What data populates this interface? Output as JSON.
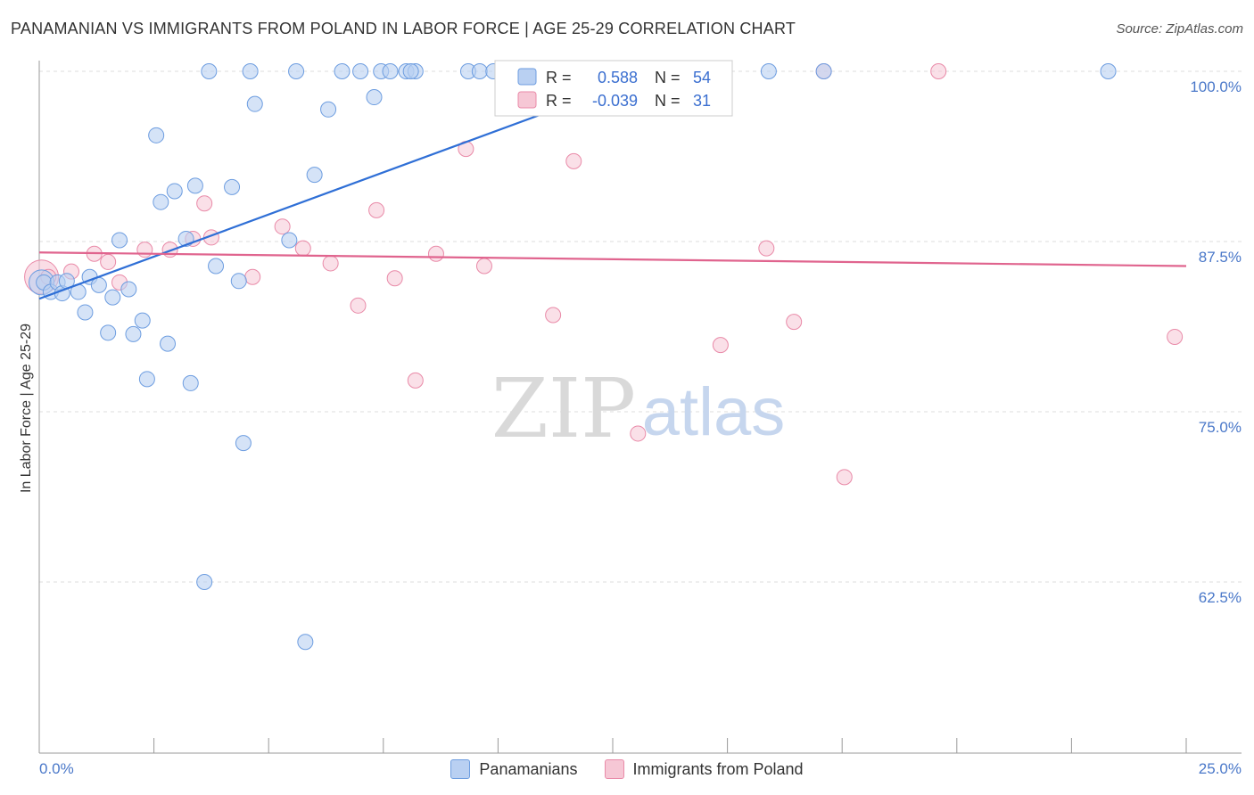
{
  "header": {
    "title": "PANAMANIAN VS IMMIGRANTS FROM POLAND IN LABOR FORCE | AGE 25-29 CORRELATION CHART",
    "source": "Source: ZipAtlas.com"
  },
  "watermark": {
    "zip": "ZIP",
    "atlas": "atlas"
  },
  "chart_data": {
    "type": "scatter",
    "xlabel": "",
    "ylabel": "In Labor Force | Age 25-29",
    "xlim": [
      0,
      25
    ],
    "ylim": [
      50,
      101
    ],
    "x_tick_labels": [
      "0.0%",
      "25.0%"
    ],
    "y_ticks": [
      62.5,
      75.0,
      87.5,
      100.0
    ],
    "y_tick_labels": [
      "62.5%",
      "75.0%",
      "87.5%",
      "100.0%"
    ],
    "colors": {
      "blue": "#6d9de0",
      "blue_fill": "#b9d0f2",
      "pink": "#e98aa8",
      "pink_fill": "#f6c7d5",
      "blue_line": "#2f6fd6",
      "pink_line": "#e0648e"
    },
    "legend": [
      {
        "name": "Panamanians",
        "r_label": "R =",
        "r": "0.588",
        "n_label": "N =",
        "n": "54"
      },
      {
        "name": "Immigrants from Poland",
        "r_label": "R =",
        "r": "-0.039",
        "n_label": "N =",
        "n": "31"
      }
    ],
    "series": [
      {
        "name": "Panamanians",
        "trend": {
          "x": [
            0.0,
            13.5
          ],
          "y": [
            83.3,
            100.0
          ]
        },
        "points": [
          [
            0.1,
            84.5
          ],
          [
            0.25,
            83.8
          ],
          [
            0.4,
            84.5
          ],
          [
            0.5,
            83.7
          ],
          [
            0.85,
            83.8
          ],
          [
            0.6,
            84.6
          ],
          [
            1.1,
            84.9
          ],
          [
            1.3,
            84.3
          ],
          [
            1.6,
            83.4
          ],
          [
            1.95,
            84.0
          ],
          [
            1.0,
            82.3
          ],
          [
            1.5,
            80.8
          ],
          [
            2.05,
            80.7
          ],
          [
            2.25,
            81.7
          ],
          [
            2.8,
            80.0
          ],
          [
            2.35,
            77.4
          ],
          [
            3.3,
            77.1
          ],
          [
            1.75,
            87.6
          ],
          [
            3.2,
            87.7
          ],
          [
            3.85,
            85.7
          ],
          [
            4.35,
            84.6
          ],
          [
            5.45,
            87.6
          ],
          [
            2.65,
            90.4
          ],
          [
            2.95,
            91.2
          ],
          [
            3.4,
            91.6
          ],
          [
            4.2,
            91.5
          ],
          [
            6.0,
            92.4
          ],
          [
            2.55,
            95.3
          ],
          [
            4.7,
            97.6
          ],
          [
            6.3,
            97.2
          ],
          [
            7.3,
            98.1
          ],
          [
            3.7,
            100.0
          ],
          [
            4.6,
            100.0
          ],
          [
            5.6,
            100.0
          ],
          [
            6.6,
            100.0
          ],
          [
            7.0,
            100.0
          ],
          [
            7.45,
            100.0
          ],
          [
            7.65,
            100.0
          ],
          [
            8.0,
            100.0
          ],
          [
            8.2,
            100.0
          ],
          [
            9.35,
            100.0
          ],
          [
            9.6,
            100.0
          ],
          [
            9.9,
            100.0
          ],
          [
            10.1,
            100.0
          ],
          [
            11.5,
            100.0
          ],
          [
            12.8,
            100.0
          ],
          [
            15.9,
            100.0
          ],
          [
            17.1,
            100.0
          ],
          [
            23.3,
            100.0
          ],
          [
            4.45,
            72.7
          ],
          [
            3.6,
            62.5
          ],
          [
            5.8,
            58.1
          ],
          [
            8.1,
            100.0
          ],
          [
            10.3,
            100.0
          ]
        ],
        "big_point": [
          0.05,
          84.5
        ]
      },
      {
        "name": "Immigrants from Poland",
        "trend": {
          "x": [
            0.0,
            25.0
          ],
          "y": [
            86.7,
            85.7
          ]
        },
        "points": [
          [
            1.2,
            86.6
          ],
          [
            0.7,
            85.3
          ],
          [
            1.75,
            84.5
          ],
          [
            2.3,
            86.9
          ],
          [
            2.85,
            86.9
          ],
          [
            3.35,
            87.7
          ],
          [
            3.75,
            87.8
          ],
          [
            4.65,
            84.9
          ],
          [
            5.3,
            88.6
          ],
          [
            5.75,
            87.0
          ],
          [
            6.35,
            85.9
          ],
          [
            6.95,
            82.8
          ],
          [
            7.35,
            89.8
          ],
          [
            7.75,
            84.8
          ],
          [
            8.2,
            77.3
          ],
          [
            8.65,
            86.6
          ],
          [
            9.3,
            94.3
          ],
          [
            9.7,
            85.7
          ],
          [
            11.2,
            82.1
          ],
          [
            11.65,
            93.4
          ],
          [
            13.05,
            73.4
          ],
          [
            14.85,
            79.9
          ],
          [
            15.85,
            87.0
          ],
          [
            16.45,
            81.6
          ],
          [
            17.1,
            100.0
          ],
          [
            17.55,
            70.2
          ],
          [
            19.6,
            100.0
          ],
          [
            24.75,
            80.5
          ],
          [
            3.6,
            90.3
          ],
          [
            0.2,
            84.9
          ],
          [
            1.5,
            86.0
          ]
        ],
        "big_point": [
          0.05,
          84.9
        ]
      }
    ]
  }
}
